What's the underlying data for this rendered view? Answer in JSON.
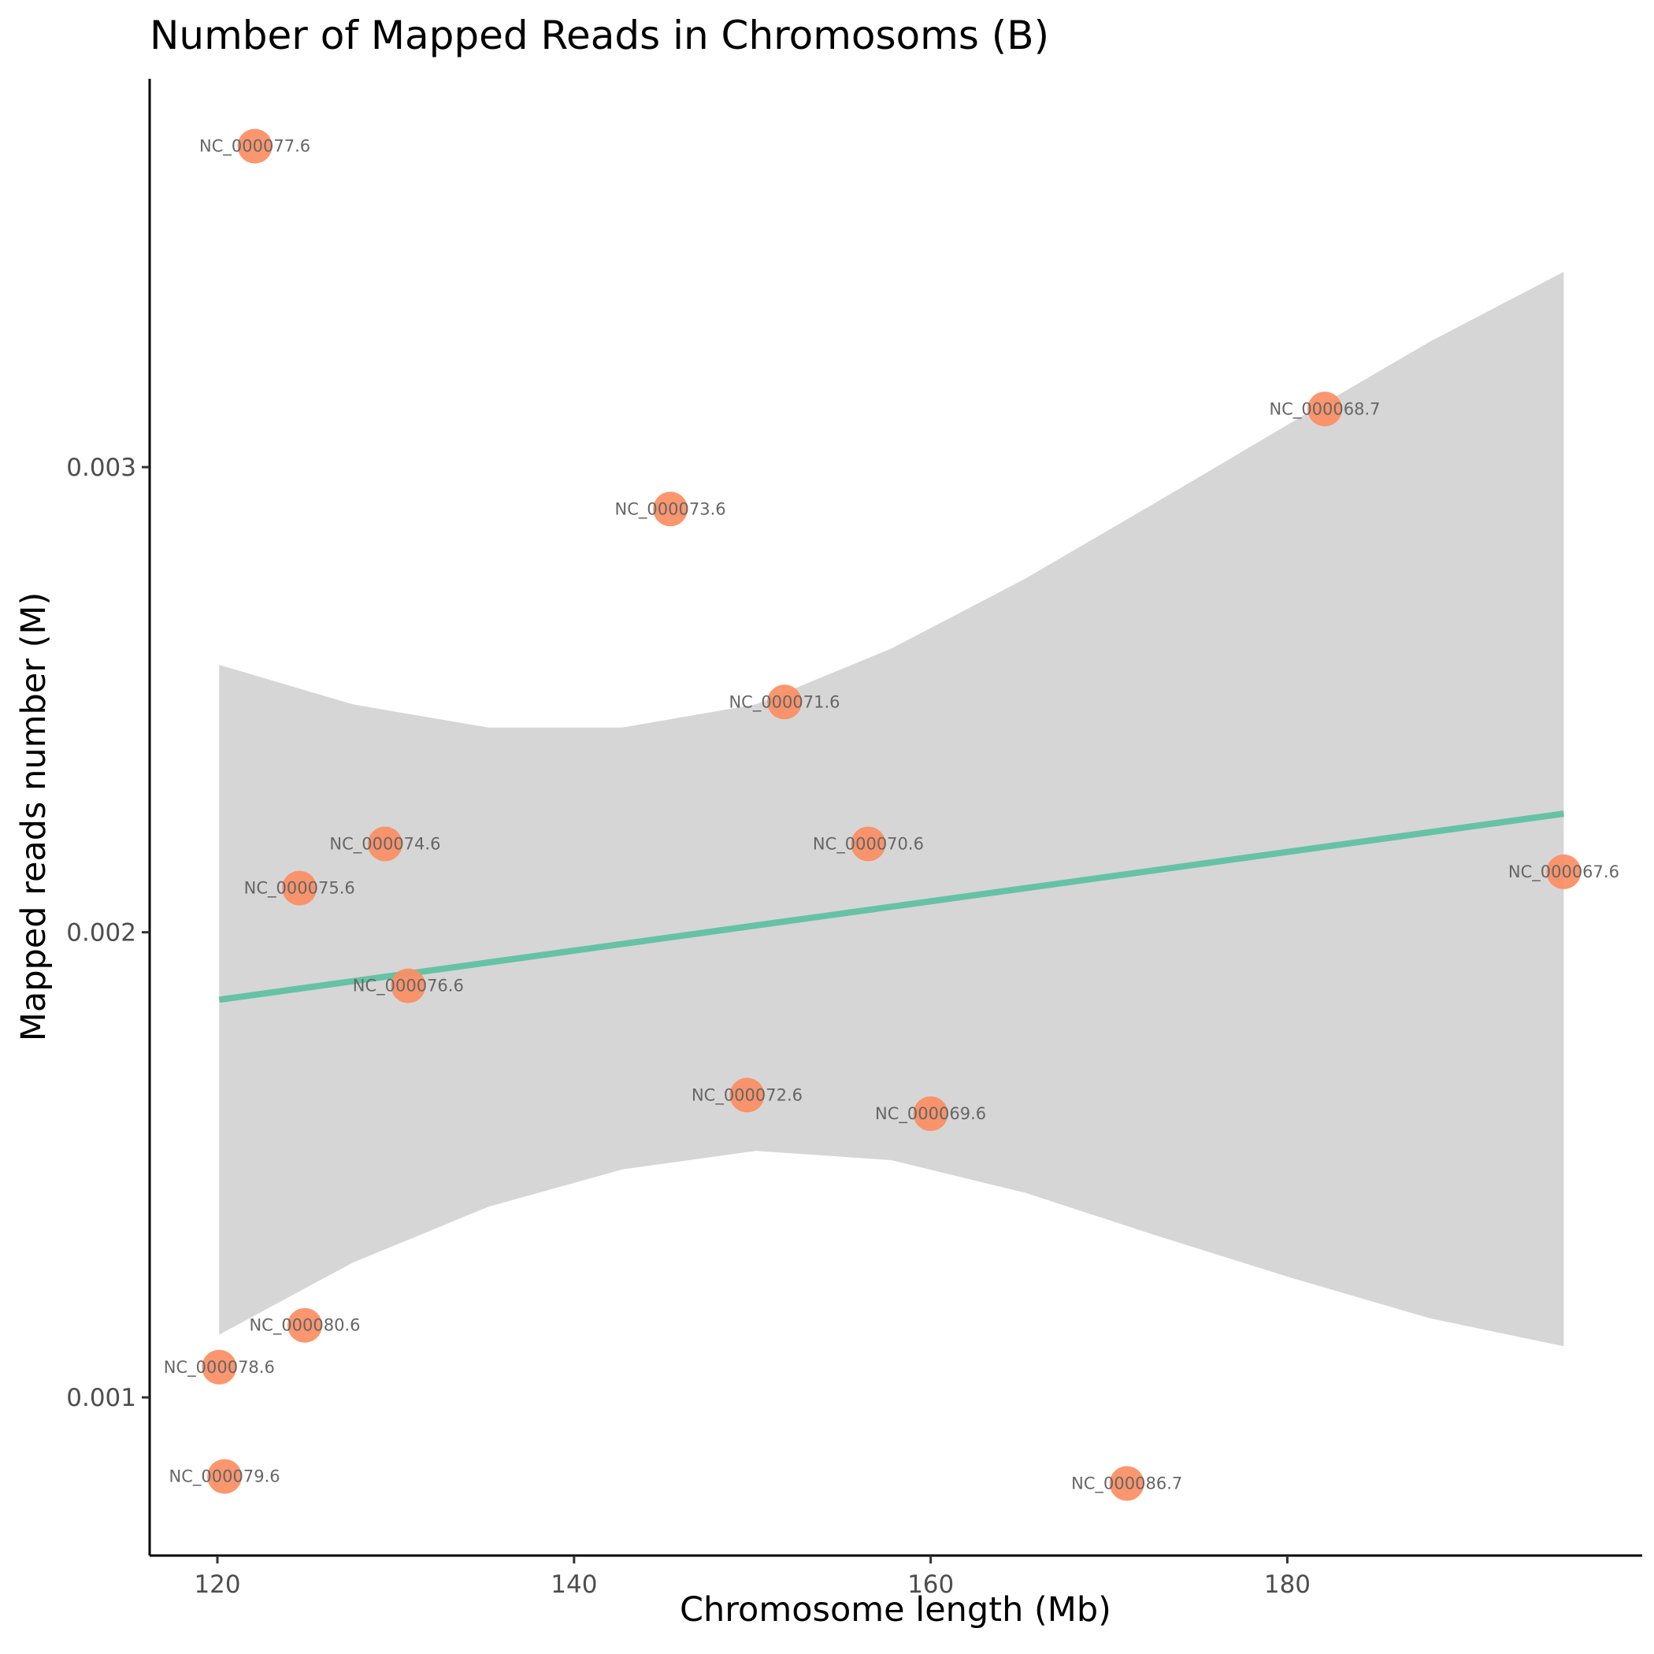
{
  "chart_data": {
    "type": "scatter",
    "title": "Number of Mapped Reads in Chromosoms (B)",
    "xlabel": "Chromosome length (Mb)",
    "ylabel": "Mapped reads number (M)",
    "xlim": [
      116.2,
      199.9
    ],
    "ylim": [
      0.00066,
      0.003835
    ],
    "xticks": [
      120,
      140,
      160,
      180
    ],
    "yticks": [
      0.001,
      0.002,
      0.003
    ],
    "xtick_labels": [
      "120",
      "140",
      "160",
      "180"
    ],
    "ytick_labels": [
      "0.001",
      "0.002",
      "0.003"
    ],
    "grid": false,
    "legend": "none",
    "point_color": "#fc8d62",
    "line_color": "#66c2a5",
    "band_color": "#d6d6d6",
    "points": [
      {
        "label": "NC_000067.6",
        "x": 195.5,
        "y": 0.00213
      },
      {
        "label": "NC_000068.7",
        "x": 182.1,
        "y": 0.003125
      },
      {
        "label": "NC_000069.6",
        "x": 160.0,
        "y": 0.00161
      },
      {
        "label": "NC_000070.6",
        "x": 156.5,
        "y": 0.00219
      },
      {
        "label": "NC_000071.6",
        "x": 151.8,
        "y": 0.002495
      },
      {
        "label": "NC_000072.6",
        "x": 149.7,
        "y": 0.00165
      },
      {
        "label": "NC_000073.6",
        "x": 145.4,
        "y": 0.00291
      },
      {
        "label": "NC_000074.6",
        "x": 129.4,
        "y": 0.00219
      },
      {
        "label": "NC_000075.6",
        "x": 124.6,
        "y": 0.002095
      },
      {
        "label": "NC_000076.6",
        "x": 130.7,
        "y": 0.001885
      },
      {
        "label": "NC_000077.6",
        "x": 122.1,
        "y": 0.00369
      },
      {
        "label": "NC_000078.6",
        "x": 120.1,
        "y": 0.001065
      },
      {
        "label": "NC_000079.6",
        "x": 120.4,
        "y": 0.00083
      },
      {
        "label": "NC_000080.6",
        "x": 124.9,
        "y": 0.001155
      },
      {
        "label": "NC_000086.7",
        "x": 171.0,
        "y": 0.000815
      }
    ],
    "fit": {
      "x": [
        120.1,
        195.5
      ],
      "y": [
        0.001855,
        0.002255
      ]
    },
    "confidence_band": {
      "x": [
        120.1,
        127.6,
        135.2,
        142.7,
        150.2,
        157.8,
        165.3,
        172.9,
        180.4,
        188.0,
        195.5
      ],
      "lower": [
        0.001135,
        0.00129,
        0.00141,
        0.00149,
        0.00153,
        0.00151,
        0.00144,
        0.001345,
        0.001255,
        0.00117,
        0.00111
      ],
      "upper": [
        0.002575,
        0.00249,
        0.00244,
        0.00244,
        0.00249,
        0.00261,
        0.00276,
        0.00293,
        0.0031,
        0.00327,
        0.00342
      ]
    }
  }
}
